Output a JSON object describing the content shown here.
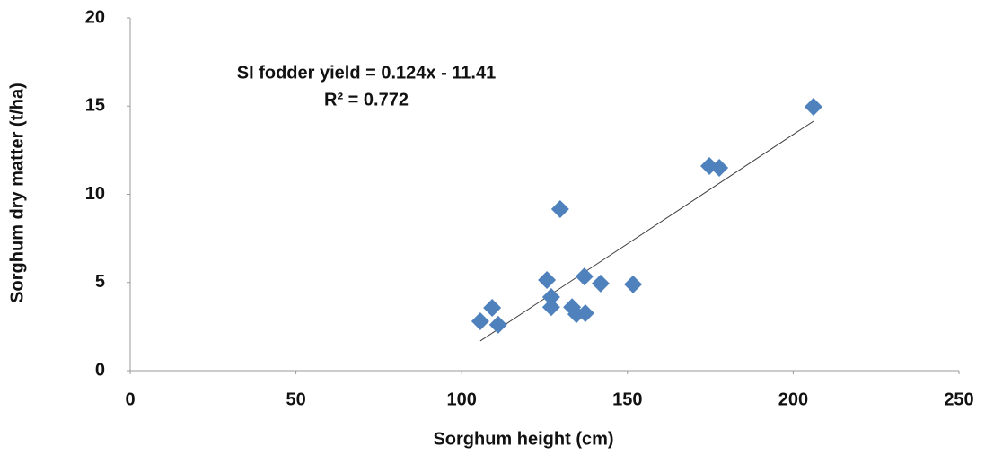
{
  "chart_data": {
    "type": "scatter",
    "x_label": "Sorghum height (cm)",
    "y_label": "Sorghum dry matter (t/ha)",
    "x": [
      105.6,
      109.2,
      111.0,
      125.7,
      127.0,
      127.0,
      129.7,
      133.3,
      134.6,
      137.0,
      137.3,
      141.9,
      151.7,
      174.7,
      177.7,
      206.1
    ],
    "values": [
      2.8,
      3.56,
      2.6,
      5.14,
      4.17,
      3.6,
      9.16,
      3.6,
      3.2,
      5.34,
      3.26,
      4.94,
      4.89,
      11.6,
      11.5,
      14.96
    ],
    "color": "#4f81bd",
    "xlim": [
      0,
      250
    ],
    "xticks": [
      0,
      50,
      100,
      150,
      200,
      250
    ],
    "ylim": [
      0,
      20
    ],
    "yticks": [
      0,
      5,
      10,
      15,
      20
    ],
    "trendline": {
      "slope": 0.124,
      "intercept": -11.41,
      "equation": "SI fodder yield = 0.124x - 11.41",
      "r2": "R² = 0.772",
      "color": "#404040"
    }
  }
}
